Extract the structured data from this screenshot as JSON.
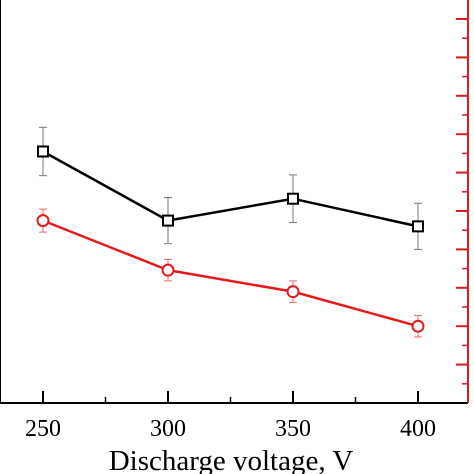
{
  "chart_data": {
    "type": "line",
    "title": "",
    "xlabel": "Discharge voltage, V",
    "ylabel": "",
    "x": [
      250,
      300,
      350,
      400
    ],
    "xticks": [
      250,
      300,
      350,
      400
    ],
    "xlim": [
      235,
      410
    ],
    "ylim": [
      0,
      10
    ],
    "grid": false,
    "series": [
      {
        "name": "",
        "marker": "square",
        "color": "#000000",
        "values": [
          6.55,
          4.75,
          5.32,
          4.6
        ],
        "errors": [
          0.63,
          0.6,
          0.62,
          0.6
        ]
      },
      {
        "name": "",
        "marker": "circle",
        "color": "#e31a1c",
        "values": [
          4.75,
          3.46,
          2.9,
          2.0
        ],
        "errors": [
          0.3,
          0.28,
          0.28,
          0.28
        ]
      }
    ],
    "right_axis_color": "#e31a1c"
  }
}
